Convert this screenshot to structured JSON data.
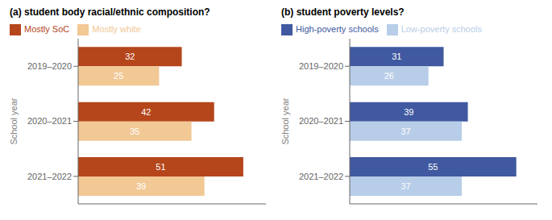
{
  "chart_data": [
    {
      "type": "bar",
      "title": "(a) student body racial/ethnic composition?",
      "ylabel": "School year",
      "categories": [
        "2019–2020",
        "2020–2021",
        "2021–2022"
      ],
      "series": [
        {
          "name": "Mostly SoC",
          "color": "#b5451b",
          "values": [
            32,
            42,
            51
          ]
        },
        {
          "name": "Mostly white",
          "color": "#f2c895",
          "values": [
            25,
            35,
            39
          ]
        }
      ],
      "xlim": [
        0,
        58
      ],
      "orientation": "horizontal",
      "data_labels": true,
      "tick_labels": "y",
      "legend": "upper left",
      "grid": false
    },
    {
      "type": "bar",
      "title": "(b) student poverty levels?",
      "ylabel": "School year",
      "categories": [
        "2019–2020",
        "2020–2021",
        "2021–2022"
      ],
      "series": [
        {
          "name": "High-poverty schools",
          "color": "#4059a0",
          "values": [
            31,
            39,
            55
          ]
        },
        {
          "name": "Low-poverty schools",
          "color": "#b8cde8",
          "values": [
            26,
            37,
            37
          ]
        }
      ],
      "xlim": [
        0,
        62
      ],
      "orientation": "horizontal",
      "data_labels": true,
      "tick_labels": "y",
      "legend": "upper left",
      "grid": false
    }
  ]
}
